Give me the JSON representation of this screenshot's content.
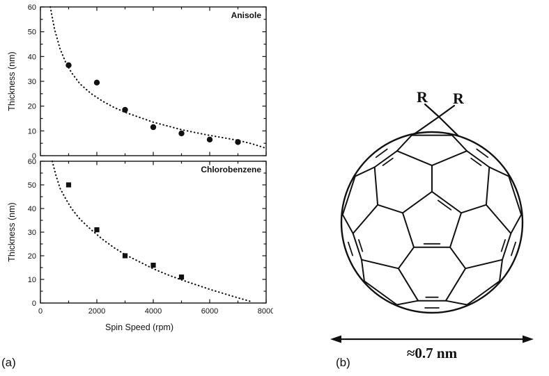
{
  "panel_labels": {
    "a": "(a)",
    "b": "(b)"
  },
  "chart_data": [
    {
      "type": "scatter",
      "name": "anisole-plot",
      "legend": "Anisole",
      "xlabel": "",
      "ylabel": "Thickness (nm)",
      "xlim": [
        0,
        8000
      ],
      "ylim": [
        0,
        60
      ],
      "x_ticks": [
        0,
        2000,
        4000,
        6000,
        8000
      ],
      "x_minor_step": 1000,
      "y_ticks": [
        0,
        10,
        20,
        30,
        40,
        50,
        60
      ],
      "y_minor_step": 5,
      "marker": "circle",
      "show_x_tick_labels": false,
      "points": [
        [
          1000,
          36.5
        ],
        [
          2000,
          29.5
        ],
        [
          3000,
          18.5
        ],
        [
          4000,
          11.5
        ],
        [
          5000,
          9
        ],
        [
          6000,
          6.5
        ],
        [
          7000,
          5.5
        ]
      ],
      "fit_curve": [
        [
          350,
          60
        ],
        [
          500,
          51
        ],
        [
          700,
          43
        ],
        [
          900,
          37.5
        ],
        [
          1100,
          33.5
        ],
        [
          1400,
          29
        ],
        [
          1800,
          25
        ],
        [
          2200,
          22
        ],
        [
          2600,
          19.5
        ],
        [
          3000,
          17.5
        ],
        [
          3500,
          15.5
        ],
        [
          4000,
          13.5
        ],
        [
          4500,
          12
        ],
        [
          5000,
          10.5
        ],
        [
          5500,
          9.3
        ],
        [
          6000,
          8.2
        ],
        [
          6500,
          7.2
        ],
        [
          7000,
          6.2
        ],
        [
          7500,
          4.8
        ],
        [
          8000,
          3
        ]
      ]
    },
    {
      "type": "scatter",
      "name": "chlorobenzene-plot",
      "legend": "Chlorobenzene",
      "xlabel": "Spin Speed (rpm)",
      "ylabel": "Thickness (nm)",
      "xlim": [
        0,
        8000
      ],
      "ylim": [
        0,
        60
      ],
      "x_ticks": [
        0,
        2000,
        4000,
        6000,
        8000
      ],
      "x_minor_step": 1000,
      "y_ticks": [
        0,
        10,
        20,
        30,
        40,
        50,
        60
      ],
      "y_minor_step": 5,
      "marker": "square",
      "show_x_tick_labels": true,
      "points": [
        [
          1000,
          50
        ],
        [
          2000,
          31
        ],
        [
          3000,
          20
        ],
        [
          4000,
          16
        ],
        [
          5000,
          11
        ]
      ],
      "fit_curve": [
        [
          420,
          60
        ],
        [
          550,
          54
        ],
        [
          700,
          48.5
        ],
        [
          900,
          44
        ],
        [
          1100,
          40
        ],
        [
          1400,
          35.5
        ],
        [
          1800,
          31
        ],
        [
          2200,
          27
        ],
        [
          2600,
          23.5
        ],
        [
          3000,
          20.5
        ],
        [
          3500,
          17.5
        ],
        [
          4000,
          14.5
        ],
        [
          4500,
          12
        ],
        [
          5000,
          9.8
        ],
        [
          5500,
          7.8
        ],
        [
          6000,
          5.8
        ],
        [
          6500,
          4
        ],
        [
          7000,
          2.2
        ],
        [
          7500,
          0.5
        ]
      ]
    }
  ],
  "molecule": {
    "substituent_left": "R",
    "substituent_right": "R",
    "scale_label": "≈0.7 nm"
  },
  "colors": {
    "ink": "#111111",
    "background": "#ffffff"
  }
}
